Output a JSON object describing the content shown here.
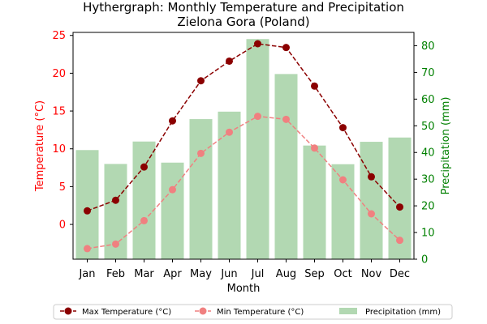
{
  "chart_data": {
    "type": "bar+line",
    "title_line1": "Hythergraph: Monthly Temperature and Precipitation",
    "title_line2": "Zielona Gora (Poland)",
    "xlabel": "Month",
    "ylabel_left": "Temperature (°C)",
    "ylabel_right": "Precipitation (mm)",
    "categories": [
      "Jan",
      "Feb",
      "Mar",
      "Apr",
      "May",
      "Jun",
      "Jul",
      "Aug",
      "Sep",
      "Oct",
      "Nov",
      "Dec"
    ],
    "ylim_left": [
      -4.6,
      25.4
    ],
    "ylim_right": [
      0,
      85
    ],
    "yticks_left": [
      0,
      5,
      10,
      15,
      20,
      25
    ],
    "yticks_right": [
      0,
      10,
      20,
      30,
      40,
      50,
      60,
      70,
      80
    ],
    "series": [
      {
        "name": "Max Temperature (°C)",
        "kind": "line",
        "axis": "left",
        "color": "#8b0000",
        "linestyle": "dashed",
        "values": [
          1.8,
          3.2,
          7.6,
          13.7,
          19.0,
          21.6,
          23.9,
          23.4,
          18.3,
          12.8,
          6.3,
          2.3
        ]
      },
      {
        "name": "Min Temperature (°C)",
        "kind": "line",
        "axis": "left",
        "color": "#f08080",
        "linestyle": "dashed",
        "values": [
          -3.2,
          -2.6,
          0.5,
          4.6,
          9.4,
          12.2,
          14.3,
          13.9,
          10.1,
          5.9,
          1.4,
          -2.1
        ]
      },
      {
        "name": "Precipitation (mm)",
        "kind": "bar",
        "axis": "right",
        "color": "#b2d8b2",
        "values": [
          40.9,
          35.7,
          44.1,
          36.2,
          52.5,
          55.3,
          82.5,
          69.4,
          42.6,
          35.6,
          44.0,
          45.6
        ]
      }
    ],
    "colors": {
      "left_axis": "#ff0000",
      "right_axis": "#008000"
    },
    "legend_position": "bottom"
  }
}
